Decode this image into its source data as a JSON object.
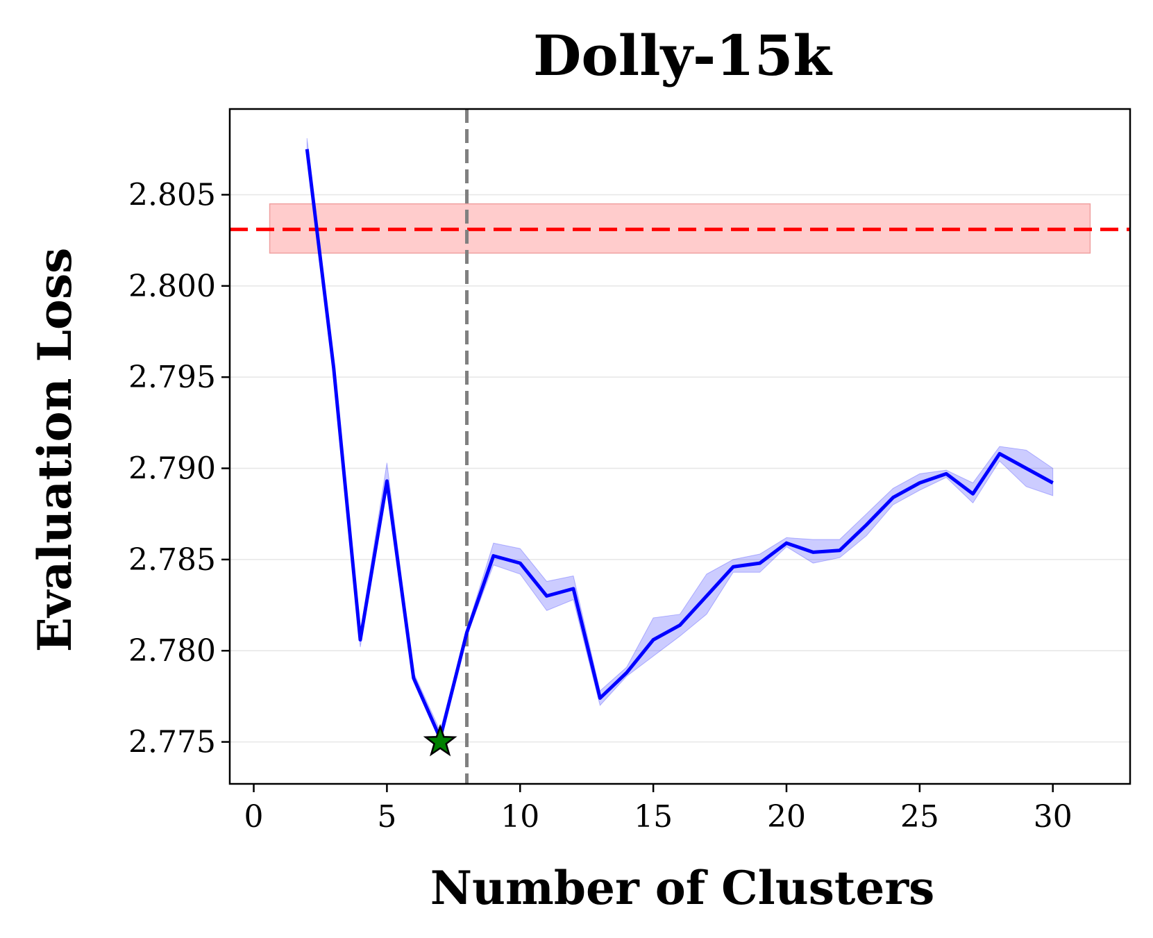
{
  "chart_data": {
    "type": "line",
    "title": "Dolly-15k",
    "xlabel": "Number of Clusters",
    "ylabel": "Evaluation Loss",
    "xlim": [
      -0.9,
      32.9
    ],
    "ylim": [
      2.7727,
      2.8097
    ],
    "xticks": [
      0,
      5,
      10,
      15,
      20,
      25,
      30
    ],
    "yticks": [
      2.775,
      2.78,
      2.785,
      2.79,
      2.795,
      2.8,
      2.805
    ],
    "xtick_labels": [
      "0",
      "5",
      "10",
      "15",
      "20",
      "25",
      "30"
    ],
    "ytick_labels": [
      "2.775",
      "2.780",
      "2.785",
      "2.790",
      "2.795",
      "2.800",
      "2.805"
    ],
    "grid": "horizontal",
    "series": [
      {
        "color": "#0000ff",
        "x": [
          2,
          3,
          4,
          5,
          6,
          7,
          8,
          9,
          10,
          11,
          12,
          13,
          14,
          15,
          16,
          17,
          18,
          19,
          20,
          21,
          22,
          23,
          24,
          25,
          26,
          27,
          28,
          29,
          30
        ],
        "y": [
          2.8075,
          2.7955,
          2.7806,
          2.7893,
          2.7785,
          2.7752,
          2.781,
          2.7852,
          2.7848,
          2.783,
          2.7834,
          2.7774,
          2.7788,
          2.7806,
          2.7814,
          2.783,
          2.7846,
          2.7848,
          2.7859,
          2.7854,
          2.7855,
          2.7869,
          2.7884,
          2.7892,
          2.7897,
          2.7886,
          2.7908,
          2.79,
          2.7892
        ],
        "y_lower": [
          2.8073,
          2.7953,
          2.7802,
          2.7889,
          2.7783,
          2.775,
          2.7808,
          2.7847,
          2.7842,
          2.7822,
          2.7828,
          2.777,
          2.7786,
          2.7797,
          2.7808,
          2.782,
          2.7843,
          2.7843,
          2.7857,
          2.7848,
          2.7851,
          2.7863,
          2.788,
          2.7888,
          2.7895,
          2.7881,
          2.7904,
          2.789,
          2.7885
        ],
        "y_upper": [
          2.8081,
          2.7958,
          2.781,
          2.7903,
          2.7788,
          2.7756,
          2.7812,
          2.7859,
          2.7856,
          2.7838,
          2.7841,
          2.7778,
          2.7791,
          2.7818,
          2.782,
          2.7842,
          2.785,
          2.7853,
          2.7862,
          2.7861,
          2.7861,
          2.7875,
          2.7889,
          2.7897,
          2.7899,
          2.7892,
          2.7912,
          2.791,
          2.79
        ]
      }
    ],
    "baseline": {
      "y": 2.8031,
      "y_lower": 2.8018,
      "y_upper": 2.8045,
      "x_start": 0.6,
      "x_end": 31.4,
      "color": "#ff0000",
      "band_color": "#ffcccc",
      "style": "dashed"
    },
    "vline": {
      "x": 8,
      "color": "#808080",
      "style": "dashed"
    },
    "best_marker": {
      "x": 7,
      "y": 2.775,
      "shape": "star",
      "color": "#008000"
    }
  }
}
